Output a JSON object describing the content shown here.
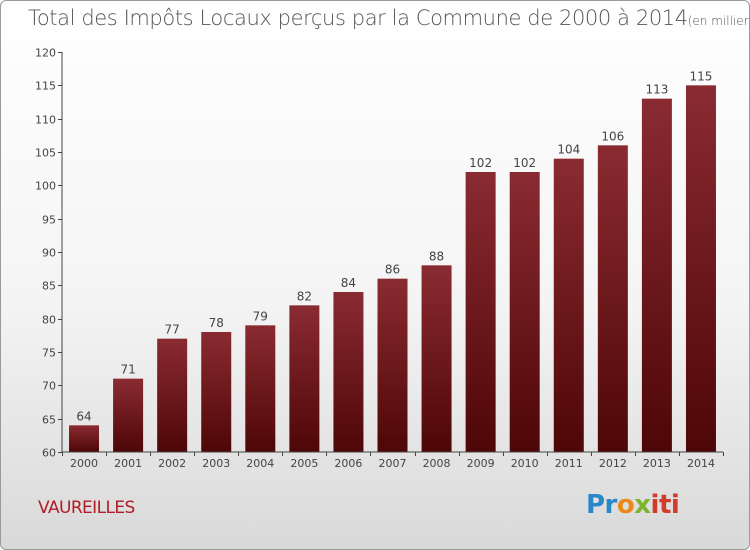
{
  "header": {
    "title": "Total des Impôts Locaux perçus par la Commune de 2000 à 2014",
    "unit": "(en milliers d'€)"
  },
  "commune": "VAUREILLES",
  "logo": {
    "text": "Proxiti",
    "colors": [
      "#2a88c9",
      "#e8891c",
      "#7bb52d",
      "#d23a2a"
    ]
  },
  "colors": {
    "bar_top": "#8a2b32",
    "bar_bottom": "#4e0606",
    "axis": "#444444",
    "text": "#444444"
  },
  "chart_data": {
    "type": "bar",
    "title": "Total des Impôts Locaux perçus par la Commune de 2000 à 2014",
    "xlabel": "",
    "ylabel": "",
    "ylim": [
      60,
      120
    ],
    "yticks": [
      60,
      65,
      70,
      75,
      80,
      85,
      90,
      95,
      100,
      105,
      110,
      115,
      120
    ],
    "grid": false,
    "categories": [
      "2000",
      "2001",
      "2002",
      "2003",
      "2004",
      "2005",
      "2006",
      "2007",
      "2008",
      "2009",
      "2010",
      "2011",
      "2012",
      "2013",
      "2014"
    ],
    "values": [
      64,
      71,
      77,
      78,
      79,
      82,
      84,
      86,
      88,
      102,
      102,
      104,
      106,
      113,
      115
    ]
  }
}
